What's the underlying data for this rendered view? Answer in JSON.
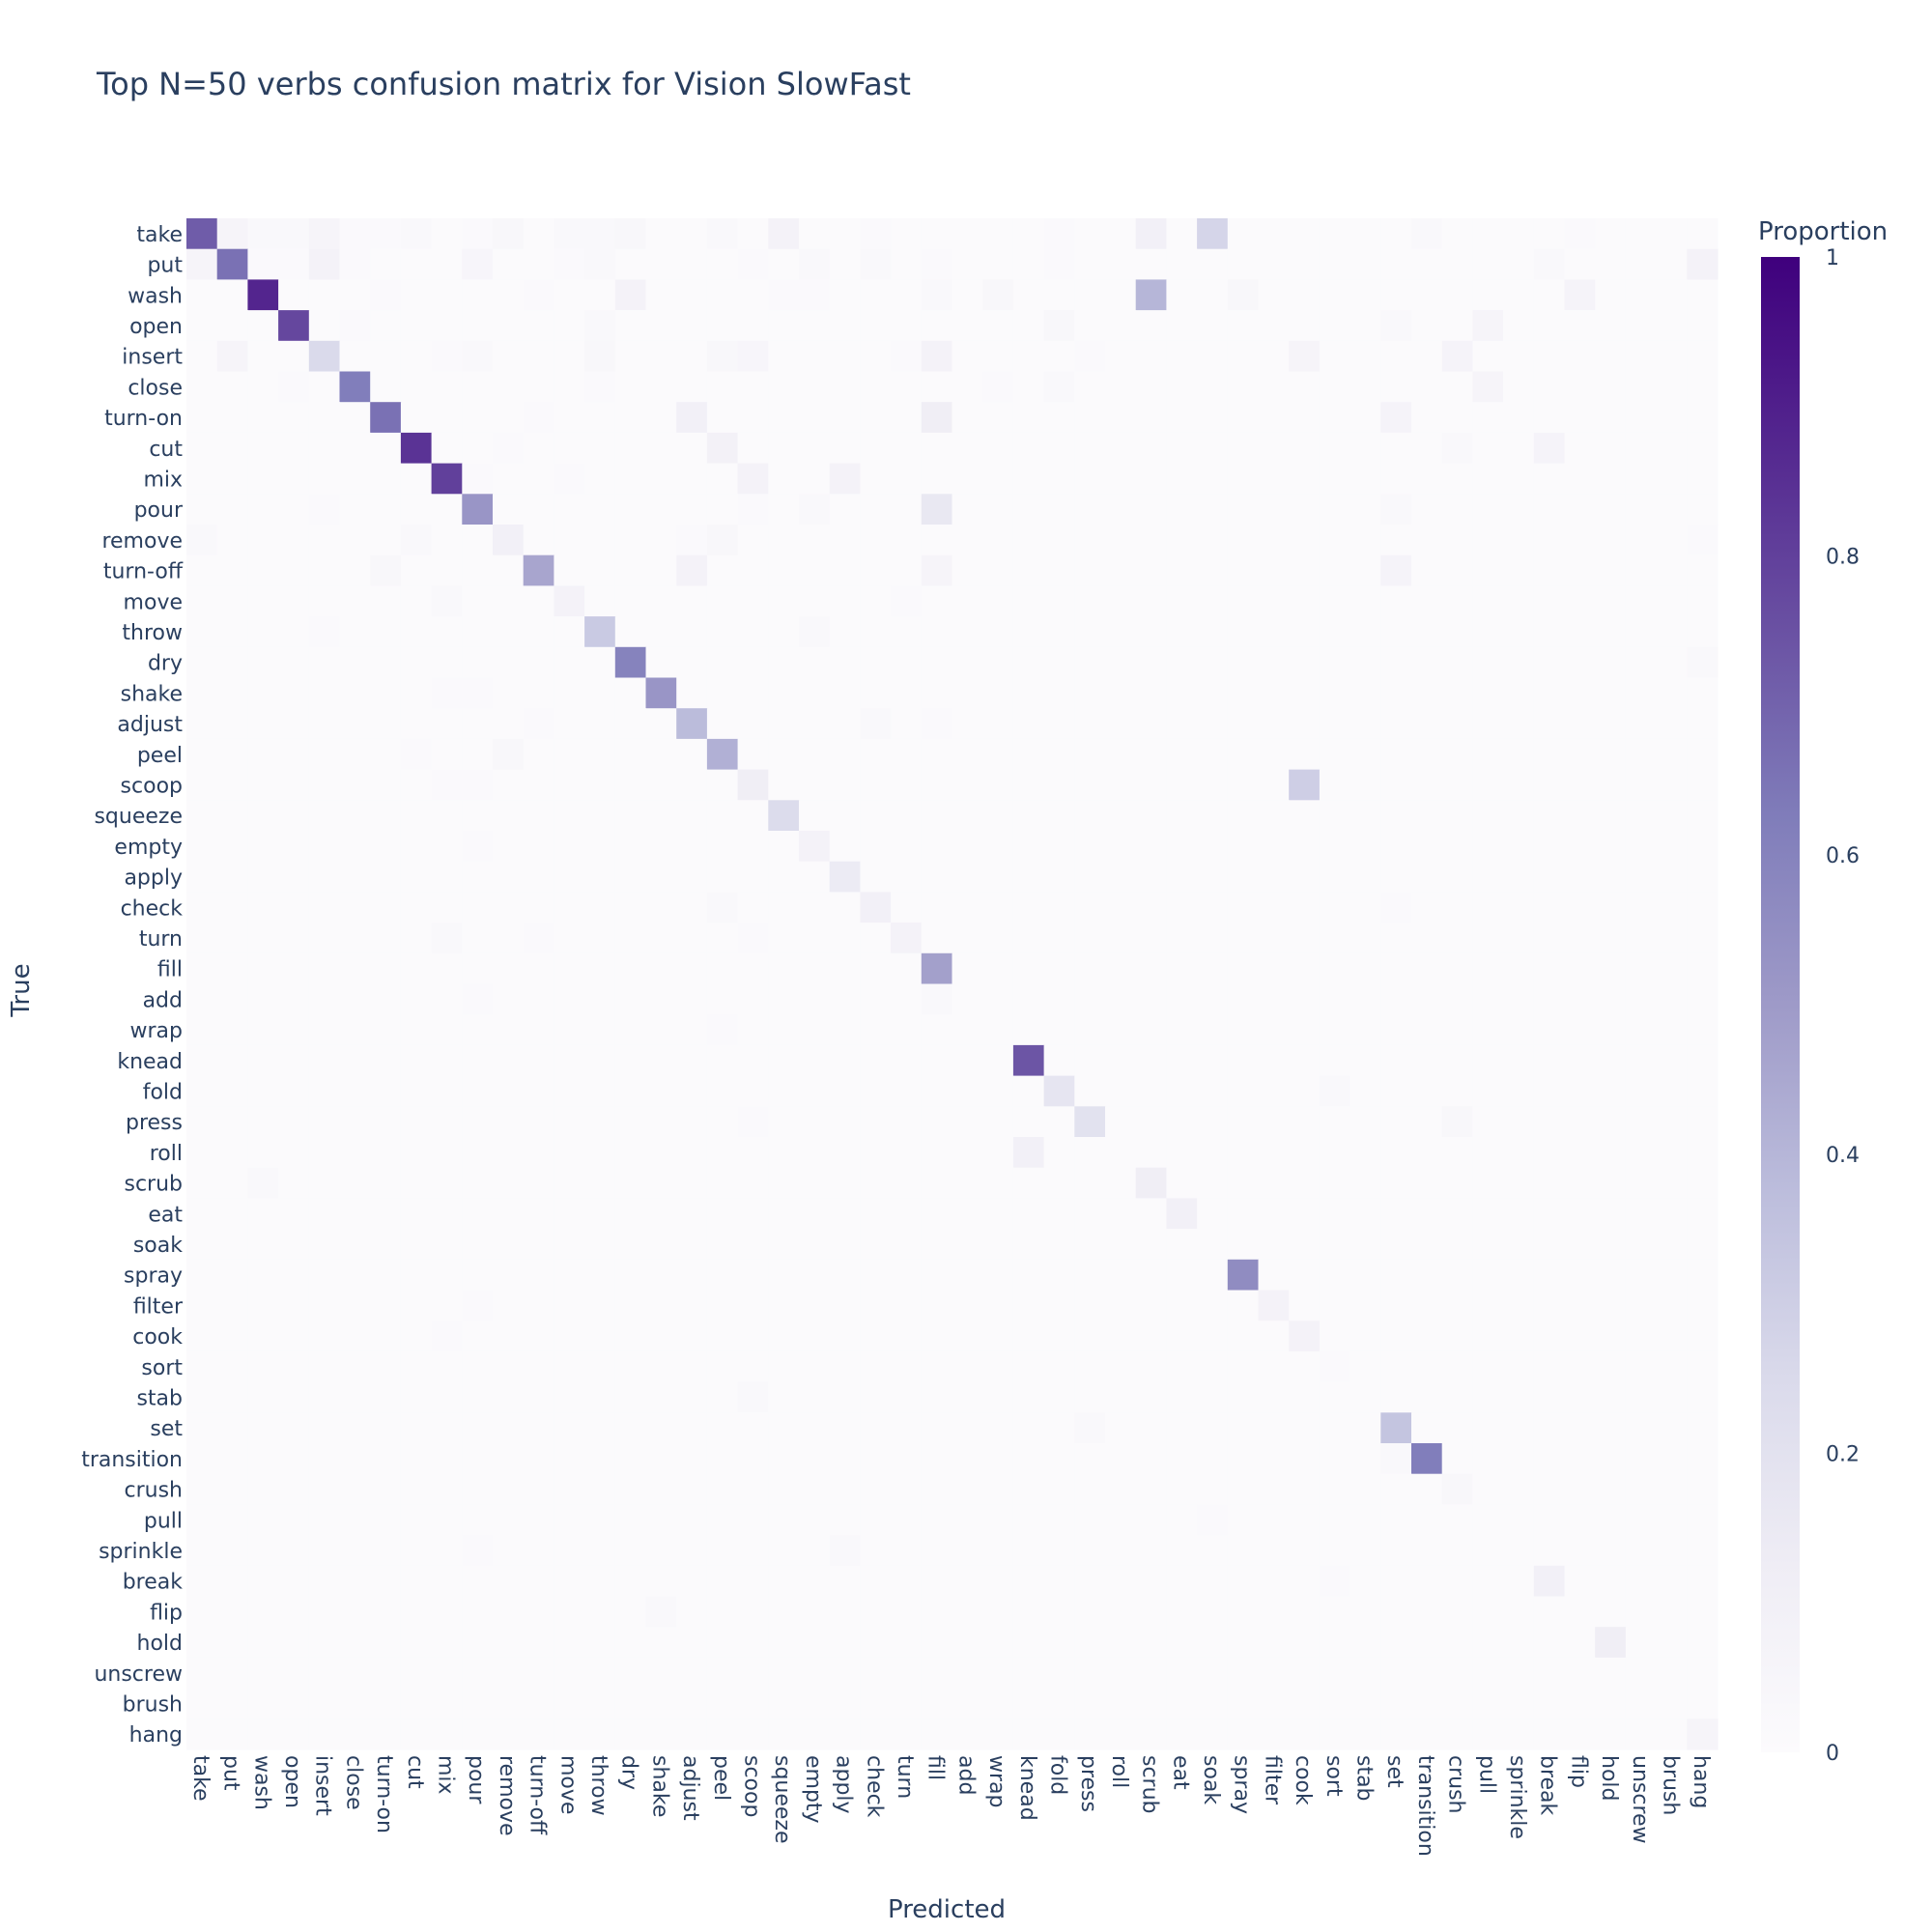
{
  "chart_data": {
    "type": "heatmap",
    "title": "Top N=50 verbs confusion matrix for Vision SlowFast",
    "xlabel": "Predicted",
    "ylabel": "True",
    "colorbar": {
      "title": "Proportion",
      "range": [
        0,
        1
      ],
      "ticks": [
        "0",
        "0.2",
        "0.4",
        "0.6",
        "0.8",
        "1"
      ],
      "colors": [
        "#fcfbfd",
        "#efedf5",
        "#dadaeb",
        "#bcbddc",
        "#9e9ac8",
        "#807dba",
        "#6a51a3",
        "#54278f",
        "#3f007d"
      ]
    },
    "labels": [
      "take",
      "put",
      "wash",
      "open",
      "insert",
      "close",
      "turn-on",
      "cut",
      "mix",
      "pour",
      "remove",
      "turn-off",
      "move",
      "throw",
      "dry",
      "shake",
      "adjust",
      "peel",
      "scoop",
      "squeeze",
      "empty",
      "apply",
      "check",
      "turn",
      "fill",
      "add",
      "wrap",
      "knead",
      "fold",
      "press",
      "roll",
      "scrub",
      "eat",
      "soak",
      "spray",
      "filter",
      "cook",
      "sort",
      "stab",
      "set",
      "transition",
      "crush",
      "pull",
      "sprinkle",
      "break",
      "flip",
      "hold",
      "unscrew",
      "brush",
      "hang"
    ],
    "background_value": 0.01,
    "cells": [
      [
        "take",
        "take",
        0.72
      ],
      [
        "take",
        "put",
        0.06
      ],
      [
        "take",
        "wash",
        0.03
      ],
      [
        "take",
        "open",
        0.03
      ],
      [
        "take",
        "insert",
        0.06
      ],
      [
        "take",
        "close",
        0.02
      ],
      [
        "take",
        "turn-on",
        0.02
      ],
      [
        "take",
        "cut",
        0.03
      ],
      [
        "take",
        "pour",
        0.02
      ],
      [
        "take",
        "remove",
        0.04
      ],
      [
        "take",
        "move",
        0.03
      ],
      [
        "take",
        "throw",
        0.03
      ],
      [
        "take",
        "dry",
        0.04
      ],
      [
        "take",
        "peel",
        0.03
      ],
      [
        "take",
        "squeeze",
        0.08
      ],
      [
        "take",
        "check",
        0.02
      ],
      [
        "take",
        "fold",
        0.02
      ],
      [
        "take",
        "scrub",
        0.1
      ],
      [
        "take",
        "soak",
        0.27
      ],
      [
        "take",
        "transition",
        0.03
      ],
      [
        "take",
        "flip",
        0.02
      ],
      [
        "put",
        "take",
        0.06
      ],
      [
        "put",
        "put",
        0.66
      ],
      [
        "put",
        "wash",
        0.02
      ],
      [
        "put",
        "open",
        0.02
      ],
      [
        "put",
        "insert",
        0.08
      ],
      [
        "put",
        "close",
        0.02
      ],
      [
        "put",
        "pour",
        0.05
      ],
      [
        "put",
        "throw",
        0.03
      ],
      [
        "put",
        "move",
        0.02
      ],
      [
        "put",
        "scoop",
        0.02
      ],
      [
        "put",
        "empty",
        0.03
      ],
      [
        "put",
        "check",
        0.03
      ],
      [
        "put",
        "fill",
        0.02
      ],
      [
        "put",
        "fold",
        0.02
      ],
      [
        "put",
        "soak",
        0.01
      ],
      [
        "put",
        "break",
        0.03
      ],
      [
        "put",
        "hang",
        0.08
      ],
      [
        "wash",
        "wash",
        0.88
      ],
      [
        "wash",
        "dry",
        0.08
      ],
      [
        "wash",
        "turn-off",
        0.02
      ],
      [
        "wash",
        "fill",
        0.03
      ],
      [
        "wash",
        "squeeze",
        0.02
      ],
      [
        "wash",
        "empty",
        0.02
      ],
      [
        "wash",
        "wrap",
        0.04
      ],
      [
        "wash",
        "scrub",
        0.4
      ],
      [
        "wash",
        "spray",
        0.04
      ],
      [
        "wash",
        "flip",
        0.07
      ],
      [
        "wash",
        "turn-on",
        0.02
      ],
      [
        "open",
        "open",
        0.78
      ],
      [
        "open",
        "close",
        0.02
      ],
      [
        "open",
        "throw",
        0.03
      ],
      [
        "open",
        "fold",
        0.04
      ],
      [
        "open",
        "set",
        0.03
      ],
      [
        "open",
        "pull",
        0.06
      ],
      [
        "insert",
        "put",
        0.06
      ],
      [
        "insert",
        "insert",
        0.25
      ],
      [
        "insert",
        "mix",
        0.02
      ],
      [
        "insert",
        "pour",
        0.03
      ],
      [
        "insert",
        "throw",
        0.04
      ],
      [
        "insert",
        "peel",
        0.04
      ],
      [
        "insert",
        "scoop",
        0.05
      ],
      [
        "insert",
        "turn",
        0.02
      ],
      [
        "insert",
        "fill",
        0.08
      ],
      [
        "insert",
        "cook",
        0.06
      ],
      [
        "insert",
        "crush",
        0.07
      ],
      [
        "insert",
        "press",
        0.02
      ],
      [
        "close",
        "close",
        0.62
      ],
      [
        "close",
        "open",
        0.02
      ],
      [
        "close",
        "throw",
        0.02
      ],
      [
        "close",
        "fold",
        0.03
      ],
      [
        "close",
        "pull",
        0.06
      ],
      [
        "close",
        "wrap",
        0.02
      ],
      [
        "turn-on",
        "turn-on",
        0.66
      ],
      [
        "turn-on",
        "adjust",
        0.1
      ],
      [
        "turn-on",
        "fill",
        0.12
      ],
      [
        "turn-on",
        "set",
        0.07
      ],
      [
        "turn-on",
        "turn-off",
        0.02
      ],
      [
        "turn-on",
        "turn",
        0.01
      ],
      [
        "cut",
        "cut",
        0.84
      ],
      [
        "cut",
        "peel",
        0.09
      ],
      [
        "cut",
        "crush",
        0.03
      ],
      [
        "cut",
        "break",
        0.07
      ],
      [
        "cut",
        "remove",
        0.02
      ],
      [
        "mix",
        "mix",
        0.8
      ],
      [
        "mix",
        "scoop",
        0.08
      ],
      [
        "mix",
        "apply",
        0.08
      ],
      [
        "mix",
        "pour",
        0.02
      ],
      [
        "mix",
        "move",
        0.02
      ],
      [
        "pour",
        "pour",
        0.52
      ],
      [
        "pour",
        "fill",
        0.16
      ],
      [
        "pour",
        "empty",
        0.03
      ],
      [
        "pour",
        "insert",
        0.02
      ],
      [
        "pour",
        "set",
        0.03
      ],
      [
        "pour",
        "scoop",
        0.02
      ],
      [
        "remove",
        "remove",
        0.1
      ],
      [
        "remove",
        "take",
        0.03
      ],
      [
        "remove",
        "peel",
        0.04
      ],
      [
        "remove",
        "cut",
        0.03
      ],
      [
        "remove",
        "adjust",
        0.02
      ],
      [
        "remove",
        "hang",
        0.02
      ],
      [
        "turn-off",
        "turn-off",
        0.46
      ],
      [
        "turn-off",
        "adjust",
        0.08
      ],
      [
        "turn-off",
        "turn-on",
        0.04
      ],
      [
        "turn-off",
        "fill",
        0.06
      ],
      [
        "turn-off",
        "set",
        0.07
      ],
      [
        "move",
        "move",
        0.08
      ],
      [
        "move",
        "mix",
        0.03
      ],
      [
        "move",
        "turn",
        0.02
      ],
      [
        "throw",
        "throw",
        0.32
      ],
      [
        "throw",
        "empty",
        0.03
      ],
      [
        "throw",
        "insert",
        0.02
      ],
      [
        "dry",
        "dry",
        0.6
      ],
      [
        "dry",
        "hang",
        0.03
      ],
      [
        "shake",
        "shake",
        0.52
      ],
      [
        "shake",
        "mix",
        0.02
      ],
      [
        "shake",
        "pour",
        0.02
      ],
      [
        "adjust",
        "adjust",
        0.38
      ],
      [
        "adjust",
        "check",
        0.03
      ],
      [
        "adjust",
        "fill",
        0.02
      ],
      [
        "adjust",
        "turn-off",
        0.02
      ],
      [
        "peel",
        "peel",
        0.42
      ],
      [
        "peel",
        "remove",
        0.04
      ],
      [
        "peel",
        "cut",
        0.02
      ],
      [
        "scoop",
        "scoop",
        0.12
      ],
      [
        "scoop",
        "cook",
        0.3
      ],
      [
        "scoop",
        "mix",
        0.02
      ],
      [
        "scoop",
        "pour",
        0.02
      ],
      [
        "squeeze",
        "squeeze",
        0.24
      ],
      [
        "empty",
        "empty",
        0.08
      ],
      [
        "empty",
        "pour",
        0.02
      ],
      [
        "apply",
        "apply",
        0.14
      ],
      [
        "check",
        "check",
        0.1
      ],
      [
        "check",
        "peel",
        0.03
      ],
      [
        "check",
        "set",
        0.02
      ],
      [
        "turn",
        "turn",
        0.08
      ],
      [
        "turn",
        "mix",
        0.03
      ],
      [
        "turn",
        "turn-off",
        0.02
      ],
      [
        "turn",
        "scoop",
        0.02
      ],
      [
        "fill",
        "fill",
        0.48
      ],
      [
        "add",
        "fill",
        0.03
      ],
      [
        "add",
        "pour",
        0.02
      ],
      [
        "wrap",
        "peel",
        0.02
      ],
      [
        "knead",
        "knead",
        0.74
      ],
      [
        "fold",
        "fold",
        0.18
      ],
      [
        "fold",
        "sort",
        0.03
      ],
      [
        "press",
        "press",
        0.2
      ],
      [
        "press",
        "crush",
        0.04
      ],
      [
        "press",
        "scoop",
        0.02
      ],
      [
        "roll",
        "knead",
        0.1
      ],
      [
        "scrub",
        "scrub",
        0.12
      ],
      [
        "scrub",
        "wash",
        0.03
      ],
      [
        "eat",
        "eat",
        0.1
      ],
      [
        "spray",
        "spray",
        0.56
      ],
      [
        "filter",
        "filter",
        0.08
      ],
      [
        "filter",
        "pour",
        0.02
      ],
      [
        "cook",
        "cook",
        0.08
      ],
      [
        "cook",
        "mix",
        0.02
      ],
      [
        "sort",
        "sort",
        0.02
      ],
      [
        "stab",
        "scoop",
        0.03
      ],
      [
        "set",
        "set",
        0.34
      ],
      [
        "set",
        "press",
        0.03
      ],
      [
        "transition",
        "transition",
        0.62
      ],
      [
        "transition",
        "set",
        0.03
      ],
      [
        "crush",
        "crush",
        0.04
      ],
      [
        "pull",
        "soak",
        0.02
      ],
      [
        "sprinkle",
        "apply",
        0.03
      ],
      [
        "sprinkle",
        "pour",
        0.02
      ],
      [
        "break",
        "break",
        0.1
      ],
      [
        "break",
        "sort",
        0.02
      ],
      [
        "flip",
        "shake",
        0.03
      ],
      [
        "hold",
        "hold",
        0.12
      ],
      [
        "hang",
        "hang",
        0.06
      ]
    ]
  }
}
